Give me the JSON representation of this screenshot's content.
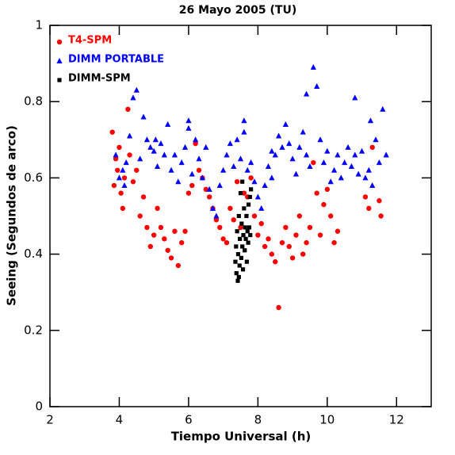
{
  "chart_data": {
    "type": "scatter",
    "title": "26 Mayo 2005 (TU)",
    "x_label": "Tiempo Universal (h)",
    "y_label": "Seeing (Segundos de arco)",
    "xlim": [
      2,
      13
    ],
    "ylim": [
      0,
      1
    ],
    "xticks": [
      2,
      4,
      6,
      8,
      10,
      12
    ],
    "yticks": [
      0,
      0.2,
      0.4,
      0.6,
      0.8,
      1
    ],
    "legend": "upper left",
    "series": [
      {
        "name": "T4-SPM",
        "color": "#ff0000",
        "marker": "circle",
        "x": [
          3.8,
          3.85,
          3.9,
          3.95,
          4.0,
          4.05,
          4.1,
          4.15,
          4.25,
          4.3,
          4.4,
          4.5,
          4.6,
          4.7,
          4.8,
          4.9,
          5.0,
          5.1,
          5.2,
          5.3,
          5.4,
          5.5,
          5.6,
          5.7,
          5.8,
          5.9,
          6.0,
          6.1,
          6.2,
          6.3,
          6.4,
          6.5,
          6.6,
          6.7,
          6.8,
          6.9,
          7.0,
          7.1,
          7.2,
          7.3,
          7.4,
          7.5,
          7.6,
          7.7,
          7.8,
          7.9,
          8.0,
          8.1,
          8.2,
          8.3,
          8.4,
          8.5,
          8.6,
          8.7,
          8.8,
          8.9,
          9.0,
          9.1,
          9.2,
          9.3,
          9.4,
          9.5,
          9.6,
          9.7,
          9.8,
          9.9,
          10.0,
          10.1,
          10.2,
          10.3,
          11.1,
          11.2,
          11.3,
          11.5,
          11.55
        ],
        "values": [
          0.72,
          0.58,
          0.65,
          0.62,
          0.68,
          0.56,
          0.52,
          0.6,
          0.78,
          0.66,
          0.59,
          0.62,
          0.5,
          0.55,
          0.47,
          0.42,
          0.45,
          0.52,
          0.47,
          0.44,
          0.41,
          0.39,
          0.46,
          0.37,
          0.43,
          0.46,
          0.56,
          0.58,
          0.69,
          0.62,
          0.6,
          0.57,
          0.55,
          0.52,
          0.49,
          0.47,
          0.44,
          0.43,
          0.52,
          0.49,
          0.59,
          0.47,
          0.56,
          0.55,
          0.6,
          0.5,
          0.45,
          0.48,
          0.42,
          0.44,
          0.4,
          0.38,
          0.26,
          0.43,
          0.47,
          0.42,
          0.39,
          0.45,
          0.5,
          0.4,
          0.43,
          0.47,
          0.64,
          0.56,
          0.45,
          0.53,
          0.57,
          0.5,
          0.43,
          0.46,
          0.55,
          0.52,
          0.68,
          0.54,
          0.5
        ]
      },
      {
        "name": "DIMM PORTABLE",
        "color": "#0000ff",
        "marker": "triangle",
        "x": [
          3.9,
          4.0,
          4.1,
          4.2,
          4.3,
          4.4,
          4.5,
          4.6,
          4.7,
          4.8,
          4.9,
          5.0,
          5.1,
          5.2,
          5.3,
          5.4,
          5.5,
          5.6,
          5.7,
          5.8,
          5.9,
          6.0,
          6.1,
          6.2,
          6.3,
          6.4,
          6.5,
          6.6,
          6.7,
          6.8,
          6.9,
          7.0,
          7.1,
          7.2,
          7.3,
          7.4,
          7.5,
          7.6,
          7.7,
          7.8,
          7.9,
          8.0,
          8.1,
          8.2,
          8.3,
          8.4,
          8.5,
          8.6,
          8.7,
          8.8,
          8.9,
          9.0,
          9.1,
          9.2,
          9.3,
          9.4,
          9.5,
          9.6,
          9.7,
          9.8,
          9.9,
          10.0,
          10.1,
          10.2,
          10.3,
          10.4,
          10.5,
          10.6,
          10.7,
          10.8,
          10.9,
          11.0,
          11.1,
          11.2,
          11.3,
          11.4,
          11.5,
          11.6,
          11.7,
          10.8,
          9.4,
          11.25,
          6.0,
          4.15,
          5.05,
          7.6,
          8.4
        ],
        "values": [
          0.66,
          0.6,
          0.62,
          0.64,
          0.71,
          0.81,
          0.83,
          0.65,
          0.76,
          0.7,
          0.68,
          0.67,
          0.63,
          0.69,
          0.66,
          0.74,
          0.62,
          0.66,
          0.59,
          0.64,
          0.68,
          0.73,
          0.61,
          0.7,
          0.65,
          0.6,
          0.68,
          0.57,
          0.52,
          0.5,
          0.58,
          0.62,
          0.66,
          0.69,
          0.63,
          0.7,
          0.65,
          0.72,
          0.62,
          0.64,
          0.59,
          0.55,
          0.52,
          0.58,
          0.63,
          0.6,
          0.66,
          0.71,
          0.68,
          0.74,
          0.69,
          0.65,
          0.61,
          0.68,
          0.72,
          0.66,
          0.63,
          0.89,
          0.84,
          0.7,
          0.64,
          0.67,
          0.59,
          0.62,
          0.66,
          0.6,
          0.64,
          0.68,
          0.63,
          0.66,
          0.61,
          0.67,
          0.6,
          0.62,
          0.58,
          0.7,
          0.64,
          0.78,
          0.66,
          0.81,
          0.82,
          0.75,
          0.75,
          0.58,
          0.7,
          0.75,
          0.67
        ]
      },
      {
        "name": "DIMM-SPM",
        "color": "#000000",
        "marker": "square",
        "x": [
          7.35,
          7.37,
          7.38,
          7.4,
          7.42,
          7.43,
          7.45,
          7.47,
          7.48,
          7.5,
          7.52,
          7.53,
          7.55,
          7.57,
          7.58,
          7.6,
          7.62,
          7.63,
          7.65,
          7.67,
          7.68,
          7.7,
          7.72,
          7.73,
          7.75,
          7.77,
          7.78,
          7.8,
          7.45,
          7.55
        ],
        "values": [
          0.38,
          0.42,
          0.35,
          0.46,
          0.33,
          0.4,
          0.5,
          0.37,
          0.44,
          0.56,
          0.39,
          0.48,
          0.42,
          0.36,
          0.45,
          0.52,
          0.41,
          0.47,
          0.44,
          0.5,
          0.38,
          0.46,
          0.43,
          0.53,
          0.47,
          0.55,
          0.45,
          0.57,
          0.34,
          0.59
        ]
      }
    ]
  }
}
